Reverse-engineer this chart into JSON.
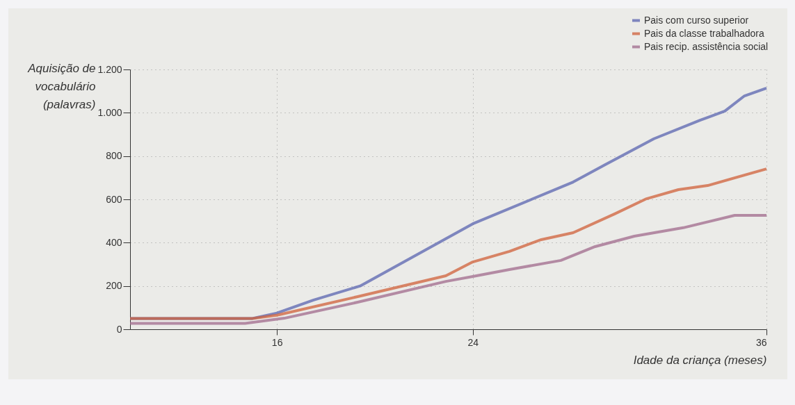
{
  "chart_data": {
    "type": "line",
    "xlabel": "Idade da criança (meses)",
    "ylabel": "Aquisição de vocabulário (palavras)",
    "xlim": [
      10,
      36
    ],
    "xticks": [
      16,
      24,
      36
    ],
    "ylim": [
      0,
      1200
    ],
    "yticks": [
      0,
      200,
      400,
      600,
      800,
      {
        "value": 1000,
        "label": "1.000"
      },
      {
        "value": 1200,
        "label": "1.200"
      }
    ],
    "grid": true,
    "legend": "top right",
    "line_style": "solid",
    "marker": "none",
    "series": [
      {
        "name": "Pais com curso superior",
        "color": "#5a64b0",
        "x": [
          10,
          15,
          16,
          17.5,
          19.4,
          24,
          28.1,
          29.4,
          31.4,
          33.3,
          34.3,
          35.1,
          36
        ],
        "values": [
          50,
          50,
          75,
          135,
          200,
          487,
          680,
          760,
          880,
          966,
          1008,
          1078,
          1114
        ]
      },
      {
        "name": "Pais da classe trabalhadora",
        "color": "#d0603a",
        "x": [
          10,
          15,
          16,
          19.3,
          22.9,
          24,
          25.5,
          26.8,
          28.1,
          29.8,
          31.1,
          32.4,
          33.6,
          36
        ],
        "values": [
          50,
          50,
          65,
          151,
          247,
          311,
          360,
          414,
          446,
          533,
          603,
          645,
          664,
          741
        ]
      },
      {
        "name": "Pais recip. assistência social",
        "color": "#a06a8c",
        "x": [
          10,
          14.7,
          16.3,
          19.3,
          22.9,
          24,
          25.5,
          27.6,
          29,
          30.6,
          32.6,
          34.7,
          36
        ],
        "values": [
          27,
          27,
          51,
          125,
          221,
          244,
          276,
          318,
          382,
          430,
          469,
          526,
          526
        ]
      }
    ]
  }
}
